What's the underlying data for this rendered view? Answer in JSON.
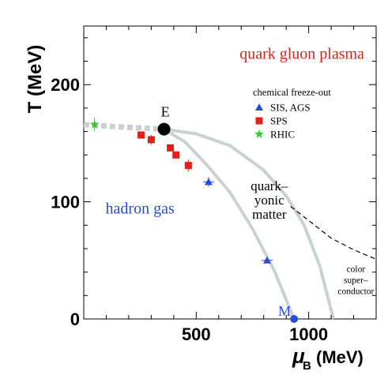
{
  "chart_data": {
    "type": "scatter",
    "xlabel_symbol": "μ",
    "xlabel_subscript": "B",
    "xlabel_unit": "(MeV)",
    "ylabel": "T (MeV)",
    "xlim": [
      0,
      1300
    ],
    "ylim": [
      0,
      250
    ],
    "xticks": [
      500,
      1000
    ],
    "yticks": [
      0,
      100,
      200
    ],
    "grid": false,
    "legend": {
      "title": "chemical freeze-out",
      "position": "top-right",
      "entries": [
        {
          "label": "SIS, AGS",
          "color": "#2a4bd7",
          "marker": "triangle"
        },
        {
          "label": "SPS",
          "color": "#e0201b",
          "marker": "square"
        },
        {
          "label": "RHIC",
          "color": "#33cc33",
          "marker": "star"
        }
      ]
    },
    "series": [
      {
        "name": "SIS, AGS",
        "color": "#2a4bd7",
        "marker": "triangle",
        "x": [
          555,
          815
        ],
        "y": [
          117,
          50
        ],
        "yerr": [
          4,
          2
        ]
      },
      {
        "name": "SPS",
        "color": "#e0201b",
        "marker": "square",
        "x": [
          255,
          300,
          385,
          410,
          465
        ],
        "y": [
          157,
          153,
          146,
          140,
          131
        ],
        "yerr": [
          2,
          4,
          3,
          3,
          5
        ]
      },
      {
        "name": "RHIC",
        "color": "#33cc33",
        "marker": "star",
        "x": [
          48
        ],
        "y": [
          166
        ],
        "yerr": [
          6
        ]
      }
    ],
    "critical_point": {
      "label": "E",
      "x": 357,
      "y": 162
    },
    "point_M": {
      "label": "M",
      "x": 935,
      "y": 0
    },
    "regions": [
      {
        "label": "quark gluon plasma",
        "color": "#e0201b",
        "x": 970,
        "y": 222
      },
      {
        "label": "hadron gas",
        "color": "#2a4bd7",
        "x": 250,
        "y": 90
      },
      {
        "label_lines": [
          "quark–",
          "yonic",
          "matter"
        ],
        "color": "#000000",
        "x": 825,
        "y": 110
      },
      {
        "label_lines": [
          "color",
          "super–",
          "conductor"
        ],
        "color": "#000000",
        "x": 1210,
        "y": 40
      }
    ],
    "curves": {
      "crossover": {
        "x": [
          0,
          60,
          150,
          250,
          357
        ],
        "y": [
          166,
          165,
          164,
          163,
          162
        ]
      },
      "transition": {
        "x": [
          357,
          450,
          550,
          650,
          750,
          850,
          935
        ],
        "y": [
          162,
          151,
          131,
          108,
          77,
          40,
          0
        ]
      },
      "quarkyonic_boundary": {
        "x": [
          357,
          500,
          650,
          800,
          900,
          980,
          1050,
          1110
        ],
        "y": [
          162,
          158,
          148,
          127,
          105,
          80,
          45,
          0
        ]
      },
      "color_superconductor_boundary": {
        "x": [
          920,
          1000,
          1100,
          1200,
          1300
        ],
        "y": [
          96,
          84,
          69,
          59,
          51
        ]
      }
    }
  }
}
